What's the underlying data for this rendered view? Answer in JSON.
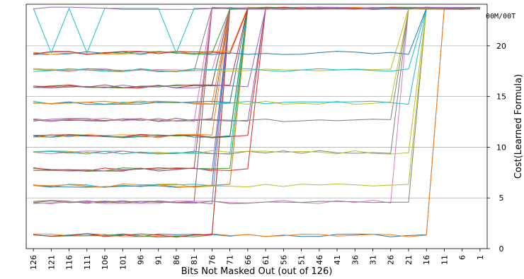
{
  "chart_data": {
    "type": "line",
    "title": "",
    "xlabel": "Bits Not Masked Out (out of 126)",
    "ylabel": "Cost(Learned Formula)",
    "annotation": "00M/00T",
    "x_ticks": [
      126,
      121,
      116,
      111,
      106,
      101,
      96,
      91,
      86,
      81,
      76,
      71,
      66,
      61,
      56,
      51,
      46,
      41,
      36,
      31,
      26,
      21,
      16,
      11,
      6,
      1
    ],
    "x_reversed": true,
    "xlim": [
      128,
      -1
    ],
    "ylim": [
      0,
      24.1
    ],
    "y_ticks": [
      0,
      5,
      10,
      15,
      20
    ],
    "y_axis_side": "right",
    "grid": "horizontal",
    "legend": "none",
    "cap_value": 23.7,
    "levels": [
      1.3,
      4.6,
      6.2,
      7.8,
      9.5,
      11.1,
      12.7,
      14.4,
      16.0,
      17.6,
      19.3
    ],
    "palette": [
      "#1f77b4",
      "#ff7f0e",
      "#2ca02c",
      "#d62728",
      "#9467bd",
      "#8c564b",
      "#e377c2",
      "#7f7f7f",
      "#bcbd22",
      "#17becf"
    ],
    "series_per_level": 4
  }
}
